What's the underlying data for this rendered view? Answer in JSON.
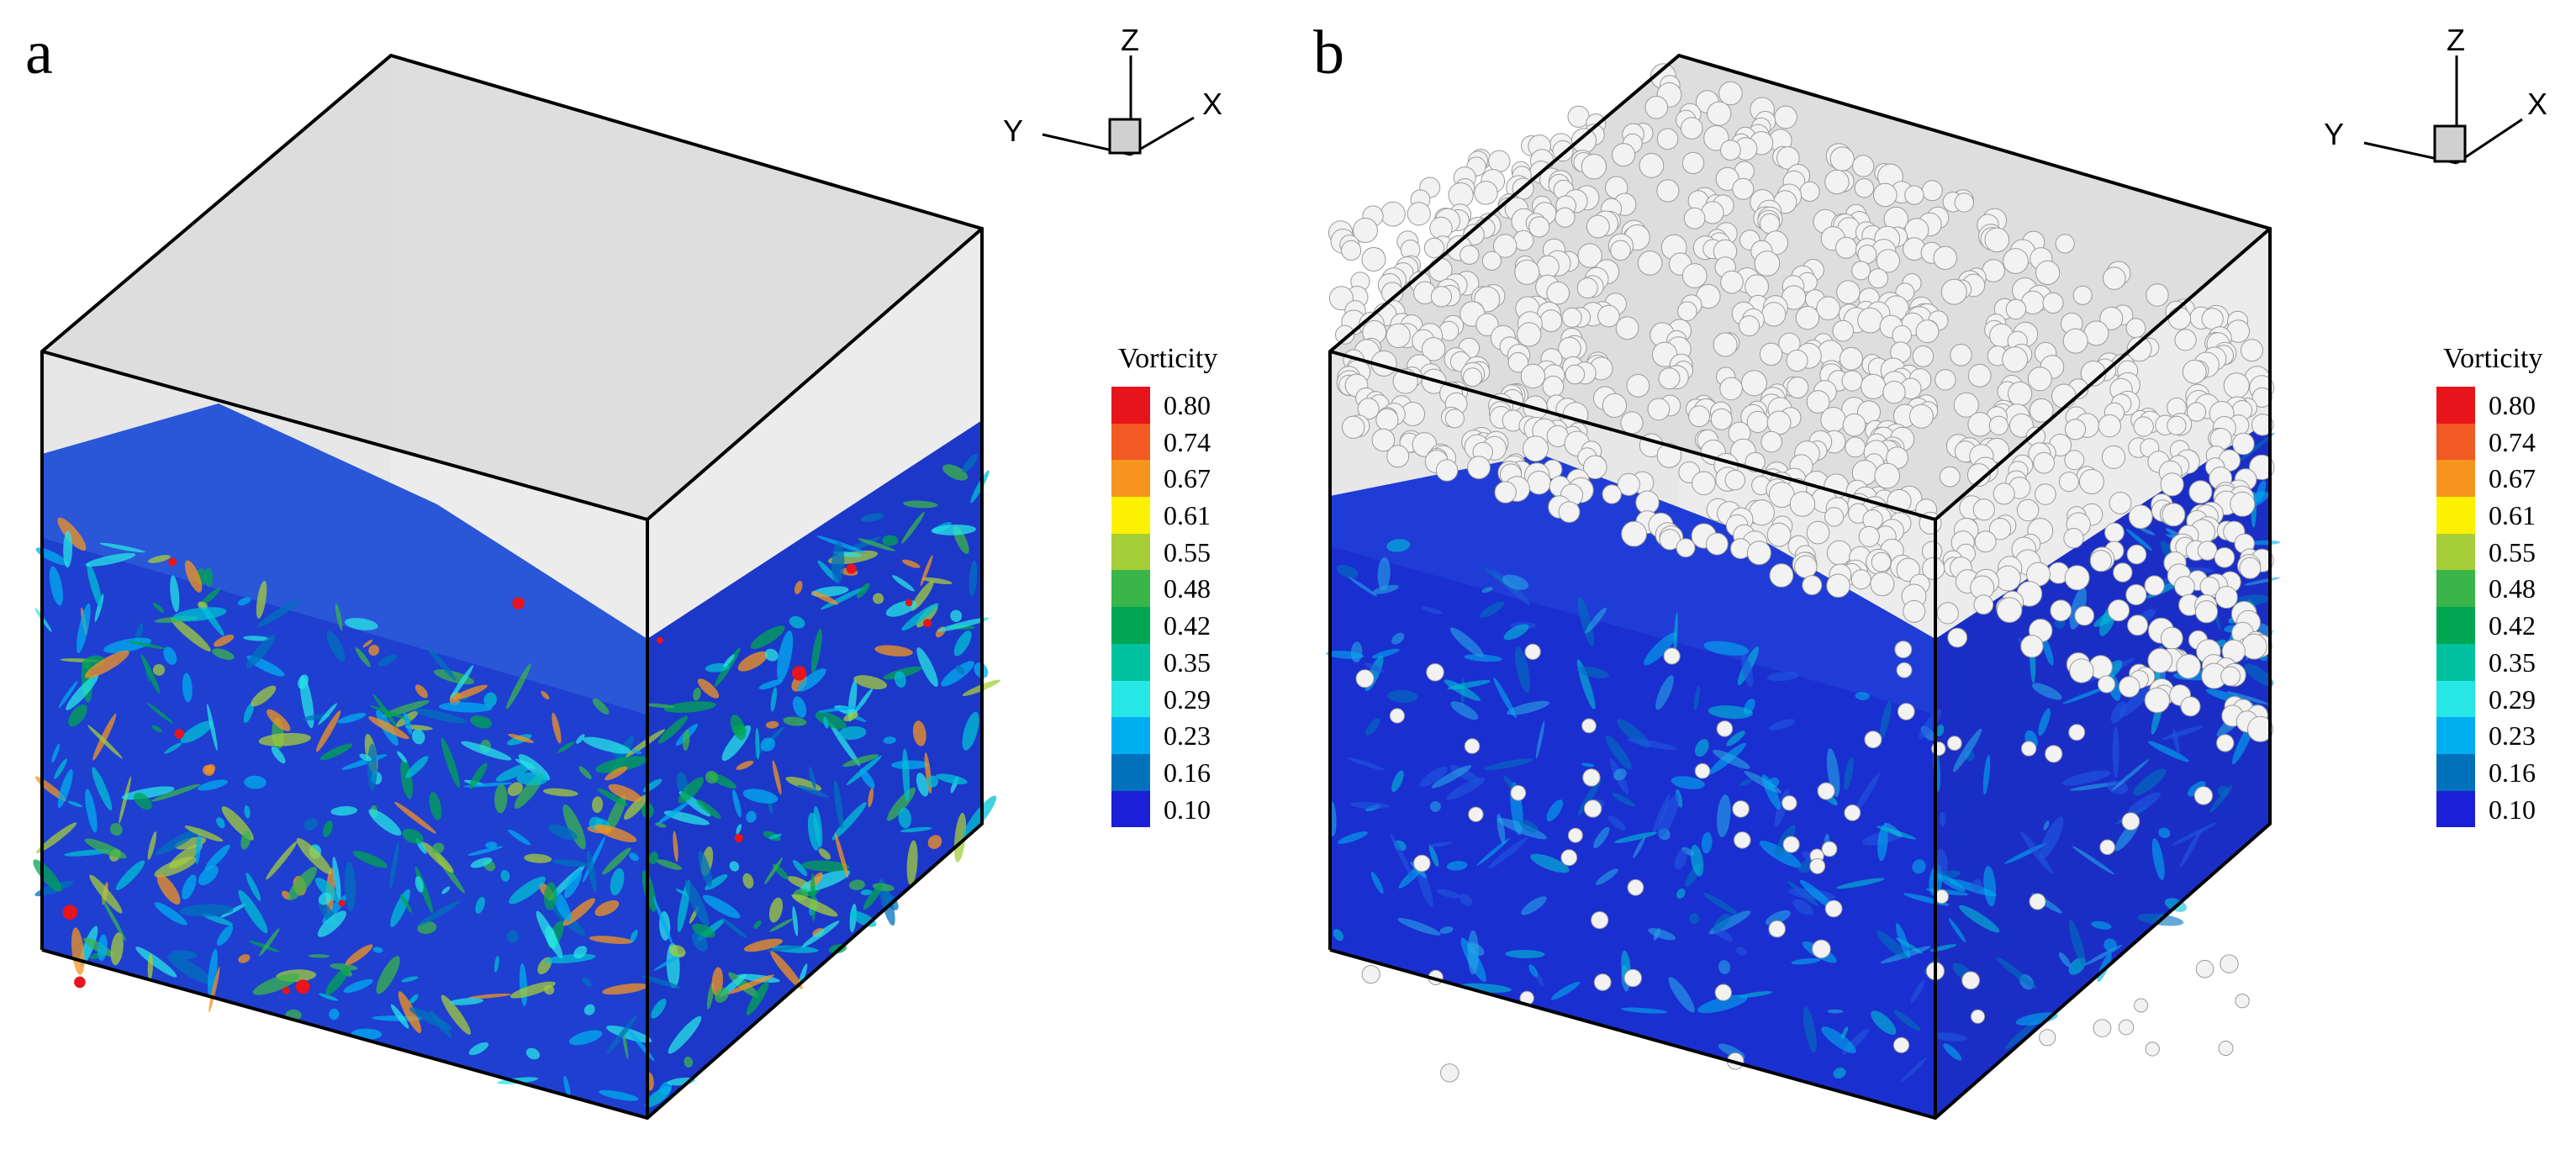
{
  "panels": [
    {
      "letter": "a",
      "vorticity_level": "high",
      "legend": {
        "title": "Vorticity",
        "levels": [
          "0.80",
          "0.74",
          "0.67",
          "0.61",
          "0.55",
          "0.48",
          "0.42",
          "0.35",
          "0.29",
          "0.23",
          "0.16",
          "0.10"
        ],
        "colors": [
          "#e8141b",
          "#f15a22",
          "#f7941d",
          "#fff200",
          "#a6ce39",
          "#39b54a",
          "#00a651",
          "#00c2a0",
          "#27e6e6",
          "#00aeef",
          "#0072bc",
          "#1b1fd6"
        ]
      },
      "axes": {
        "z": "Z",
        "y": "Y",
        "x": "X"
      }
    },
    {
      "letter": "b",
      "vorticity_level": "low",
      "legend": {
        "title": "Vorticity",
        "levels": [
          "0.80",
          "0.74",
          "0.67",
          "0.61",
          "0.55",
          "0.48",
          "0.42",
          "0.35",
          "0.29",
          "0.23",
          "0.16",
          "0.10"
        ],
        "colors": [
          "#e8141b",
          "#f15a22",
          "#f7941d",
          "#fff200",
          "#a6ce39",
          "#39b54a",
          "#00a651",
          "#00c2a0",
          "#27e6e6",
          "#00aeef",
          "#0072bc",
          "#1b1fd6"
        ]
      },
      "axes": {
        "z": "Z",
        "y": "Y",
        "x": "X"
      }
    }
  ]
}
